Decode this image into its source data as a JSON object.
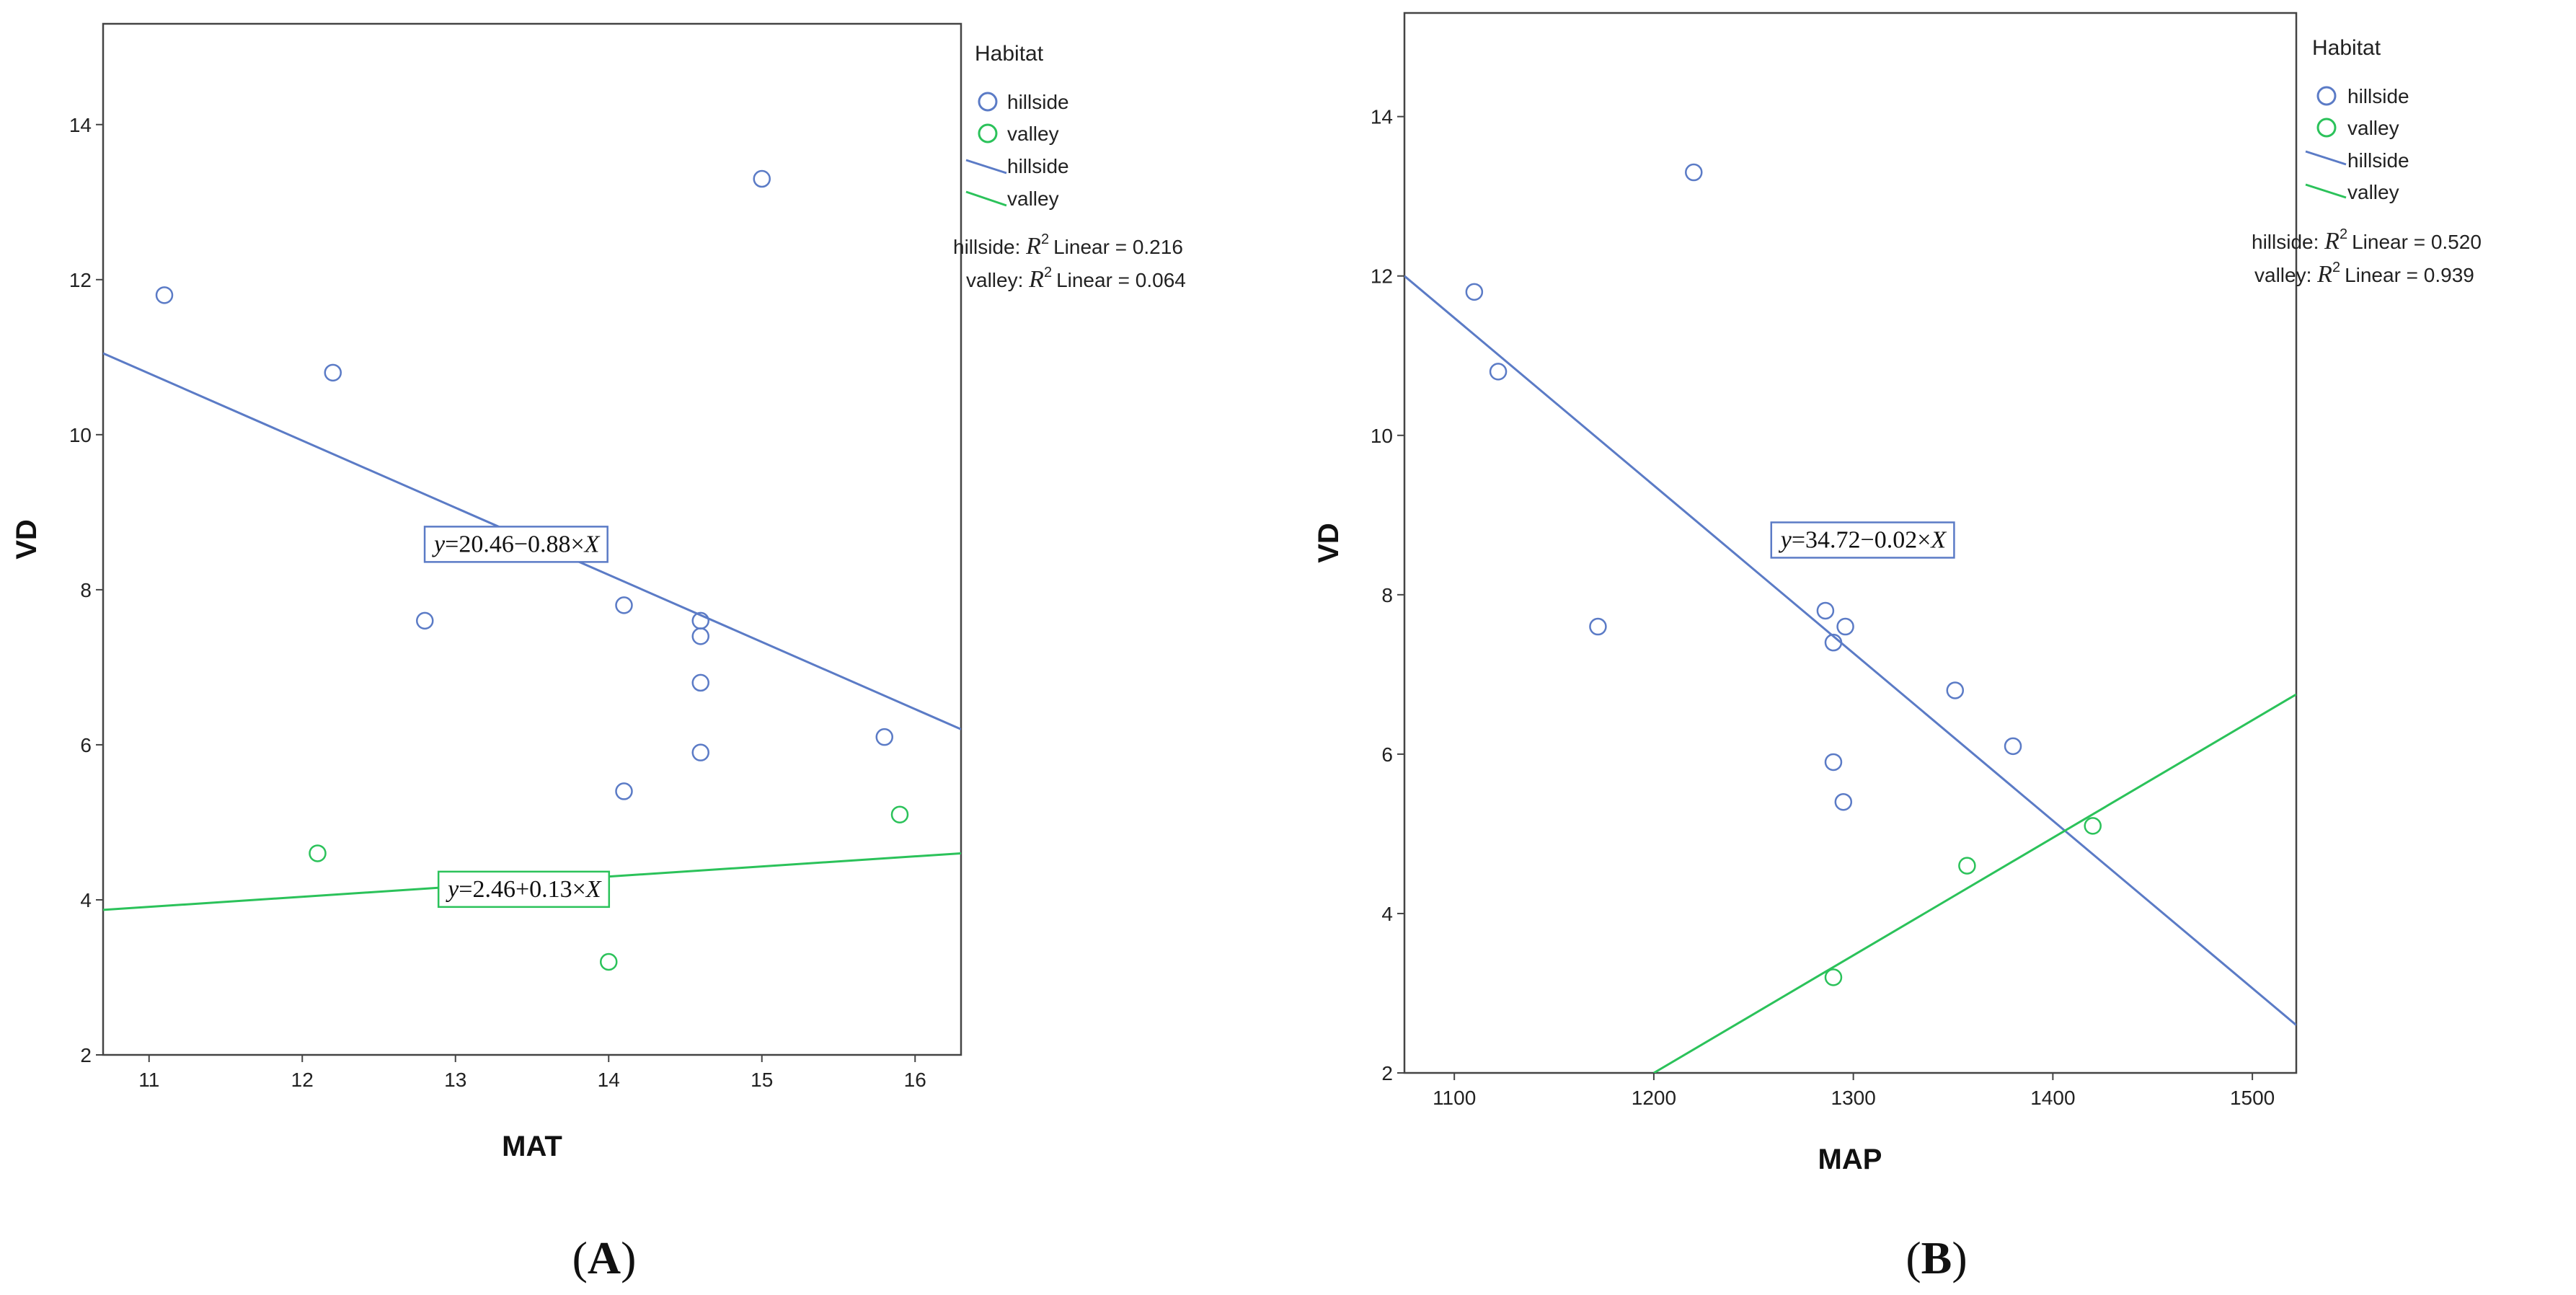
{
  "colors": {
    "hillside": "#5B7BC6",
    "valley": "#2BC25A",
    "axis": "#444444"
  },
  "chart_data": [
    {
      "type": "scatter",
      "panel_label": {
        "open": "(",
        "letter": "A",
        "close": ")"
      },
      "xlabel": "MAT",
      "ylabel": "VD",
      "xlim": [
        10.7,
        16.3
      ],
      "ylim": [
        2,
        15.3
      ],
      "xticks": [
        11,
        12,
        13,
        14,
        15,
        16
      ],
      "yticks": [
        2,
        4,
        6,
        8,
        10,
        12,
        14
      ],
      "legend": {
        "title": "Habitat",
        "entries": [
          {
            "kind": "marker",
            "series": "hillside",
            "label": "hillside"
          },
          {
            "kind": "marker",
            "series": "valley",
            "label": "valley"
          },
          {
            "kind": "line",
            "series": "hillside",
            "label": "hillside"
          },
          {
            "kind": "line",
            "series": "valley",
            "label": "valley"
          }
        ],
        "r2": [
          {
            "series": "hillside",
            "prefix": "hillside: ",
            "label": "Linear = 0.216"
          },
          {
            "series": "valley",
            "prefix": "valley: ",
            "label": "Linear = 0.064"
          }
        ]
      },
      "series": [
        {
          "name": "hillside",
          "points": [
            [
              11.1,
              11.8
            ],
            [
              12.2,
              10.8
            ],
            [
              12.8,
              7.6
            ],
            [
              14.1,
              7.8
            ],
            [
              14.6,
              7.6
            ],
            [
              14.6,
              7.4
            ],
            [
              14.6,
              6.8
            ],
            [
              14.6,
              5.9
            ],
            [
              14.1,
              5.4
            ],
            [
              15.0,
              13.3
            ],
            [
              15.8,
              6.1
            ]
          ],
          "fit": {
            "intercept": 20.46,
            "slope": -0.88,
            "r2": 0.216
          },
          "fit_line": [
            [
              10.7,
              11.05
            ],
            [
              16.3,
              6.2
            ]
          ],
          "equation": {
            "y": "y",
            "rest": "=20.46−0.88×",
            "x": "X"
          },
          "equation_anchor": [
            13.4,
            8.6
          ]
        },
        {
          "name": "valley",
          "points": [
            [
              12.1,
              4.6
            ],
            [
              14.0,
              3.2
            ],
            [
              15.9,
              5.1
            ]
          ],
          "fit": {
            "intercept": 2.46,
            "slope": 0.13,
            "r2": 0.064
          },
          "fit_line": [
            [
              10.7,
              3.87
            ],
            [
              16.3,
              4.6
            ]
          ],
          "equation": {
            "y": "y",
            "rest": "=2.46+0.13×",
            "x": "X"
          },
          "equation_anchor": [
            13.45,
            4.15
          ]
        }
      ]
    },
    {
      "type": "scatter",
      "panel_label": {
        "open": "(",
        "letter": "B",
        "close": ")"
      },
      "xlabel": "MAP",
      "ylabel": "VD",
      "xlim": [
        1075,
        1522
      ],
      "ylim": [
        2,
        15.3
      ],
      "xticks": [
        1100,
        1200,
        1300,
        1400,
        1500
      ],
      "yticks": [
        2,
        4,
        6,
        8,
        10,
        12,
        14
      ],
      "legend": {
        "title": "Habitat",
        "entries": [
          {
            "kind": "marker",
            "series": "hillside",
            "label": "hillside"
          },
          {
            "kind": "marker",
            "series": "valley",
            "label": "valley"
          },
          {
            "kind": "line",
            "series": "hillside",
            "label": "hillside"
          },
          {
            "kind": "line",
            "series": "valley",
            "label": "valley"
          }
        ],
        "r2": [
          {
            "series": "hillside",
            "prefix": "hillside: ",
            "label": "Linear = 0.520"
          },
          {
            "series": "valley",
            "prefix": "valley: ",
            "label": "Linear = 0.939"
          }
        ]
      },
      "series": [
        {
          "name": "hillside",
          "points": [
            [
              1110,
              11.8
            ],
            [
              1122,
              10.8
            ],
            [
              1220,
              13.3
            ],
            [
              1172,
              7.6
            ],
            [
              1286,
              7.8
            ],
            [
              1290,
              7.4
            ],
            [
              1296,
              7.6
            ],
            [
              1351,
              6.8
            ],
            [
              1380,
              6.1
            ],
            [
              1290,
              5.9
            ],
            [
              1295,
              5.4
            ]
          ],
          "fit": {
            "intercept": 34.72,
            "slope": -0.02,
            "r2": 0.52
          },
          "fit_line": [
            [
              1075,
              12.0
            ],
            [
              1522,
              2.6
            ]
          ],
          "equation": {
            "y": "y",
            "rest": "=34.72−0.02×",
            "x": "X"
          },
          "equation_anchor": [
            1305,
            8.7
          ]
        },
        {
          "name": "valley",
          "points": [
            [
              1290,
              3.2
            ],
            [
              1357,
              4.6
            ],
            [
              1420,
              5.1
            ]
          ],
          "fit": {
            "intercept": null,
            "slope": null,
            "r2": 0.939
          },
          "fit_line": [
            [
              1200,
              2.0
            ],
            [
              1522,
              6.75
            ]
          ],
          "equation": null,
          "equation_anchor": null
        }
      ]
    }
  ]
}
